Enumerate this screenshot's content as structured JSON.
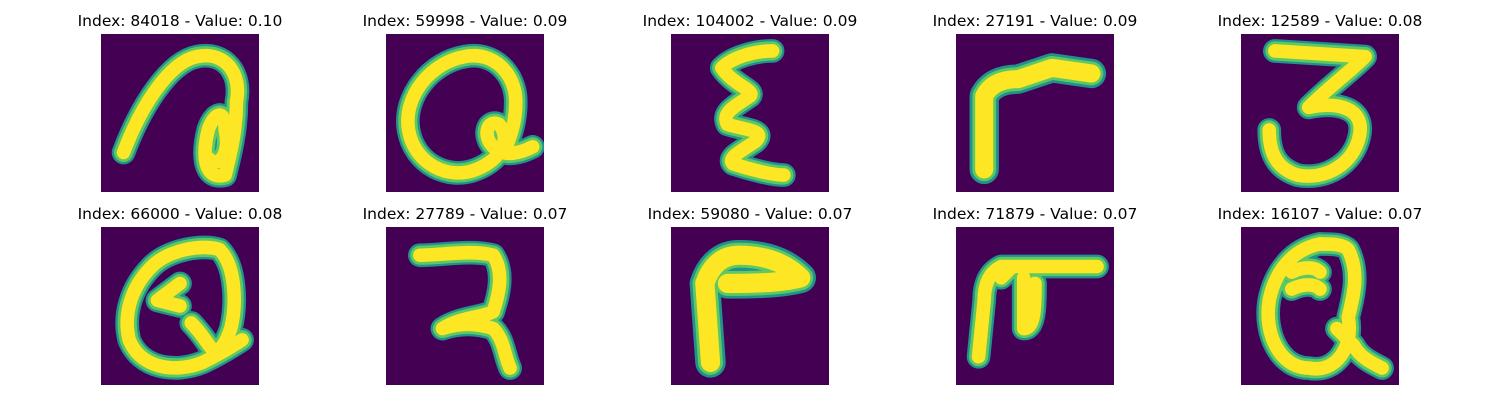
{
  "colors": {
    "background": "#440154",
    "stroke_core": "#fde725",
    "stroke_mid": "#5ec962",
    "stroke_edge": "#21918c"
  },
  "panels": [
    {
      "title": "Index: 84018 - Value: 0.10"
    },
    {
      "title": "Index: 59998 - Value: 0.09"
    },
    {
      "title": "Index: 104002 - Value: 0.09"
    },
    {
      "title": "Index: 27191 - Value: 0.09"
    },
    {
      "title": "Index: 12589 - Value: 0.08"
    },
    {
      "title": "Index: 66000 - Value: 0.08"
    },
    {
      "title": "Index: 27789 - Value: 0.07"
    },
    {
      "title": "Index: 59080 - Value: 0.07"
    },
    {
      "title": "Index: 71879 - Value: 0.07"
    },
    {
      "title": "Index: 16107 - Value: 0.07"
    }
  ]
}
